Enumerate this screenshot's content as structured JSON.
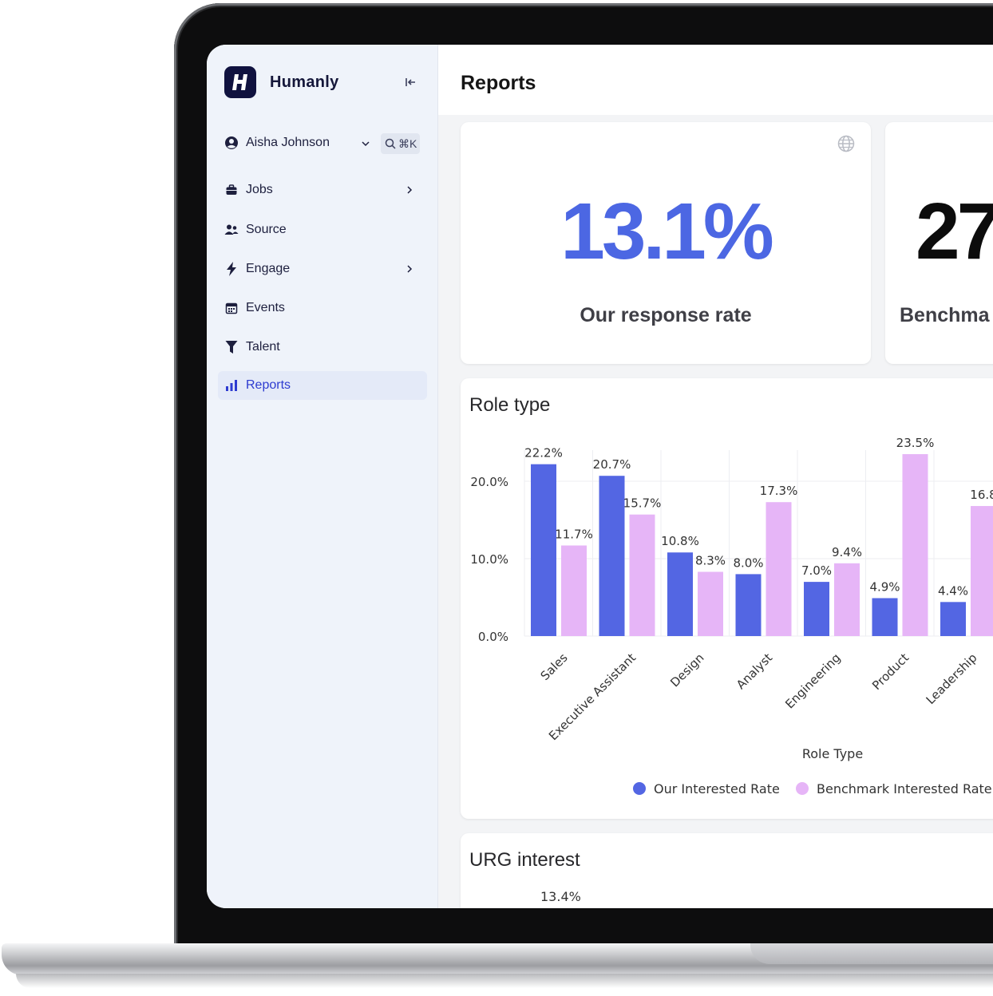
{
  "app": {
    "brand": "Humanly",
    "user_name": "Aisha Johnson",
    "search_shortcut": "⌘K"
  },
  "sidebar": {
    "items": [
      {
        "label": "Jobs",
        "icon": "briefcase-icon",
        "has_arrow": true
      },
      {
        "label": "Source",
        "icon": "users-icon",
        "has_arrow": false
      },
      {
        "label": "Engage",
        "icon": "bolt-icon",
        "has_arrow": true
      },
      {
        "label": "Events",
        "icon": "calendar-icon",
        "has_arrow": false
      },
      {
        "label": "Talent",
        "icon": "funnel-icon",
        "has_arrow": false
      },
      {
        "label": "Reports",
        "icon": "bar-chart-icon",
        "has_arrow": false,
        "active": true
      }
    ]
  },
  "main": {
    "page_title": "Reports",
    "kpis": [
      {
        "value": "13.1%",
        "label": "Our response rate"
      },
      {
        "value": "27",
        "label": "Benchma"
      }
    ],
    "role_card_title": "Role type",
    "urg_card_title": "URG interest",
    "urg_first_label": "13.4%"
  },
  "colors": {
    "accent": "#4c67e3",
    "our_series": "#5366e3",
    "benchmark_series": "#e6b5f7",
    "active_nav": "#2d3bd0"
  },
  "chart_data": {
    "type": "bar",
    "xlabel": "Role Type",
    "ylabel": "",
    "ylim": [
      0,
      23.5
    ],
    "y_ticks": [
      "0.0%",
      "10.0%",
      "20.0%"
    ],
    "categories": [
      "Sales",
      "Executive Assistant",
      "Design",
      "Analyst",
      "Engineering",
      "Product",
      "Leadership",
      ""
    ],
    "series": [
      {
        "name": "Our Interested Rate",
        "color": "#5366e3",
        "values": [
          22.2,
          20.7,
          10.8,
          8.0,
          7.0,
          4.9,
          4.4,
          null
        ],
        "labels": [
          "22.2%",
          "20.7%",
          "10.8%",
          "8.0%",
          "7.0%",
          "4.9%",
          "4.4%",
          ""
        ]
      },
      {
        "name": "Benchmark Interested Rate",
        "color": "#e6b5f7",
        "values": [
          11.7,
          15.7,
          8.3,
          17.3,
          9.4,
          23.5,
          16.8,
          null
        ],
        "labels": [
          "11.7%",
          "15.7%",
          "8.3%",
          "17.3%",
          "9.4%",
          "23.5%",
          "16.8",
          ""
        ]
      }
    ],
    "grid": true,
    "legend_position": "bottom"
  }
}
